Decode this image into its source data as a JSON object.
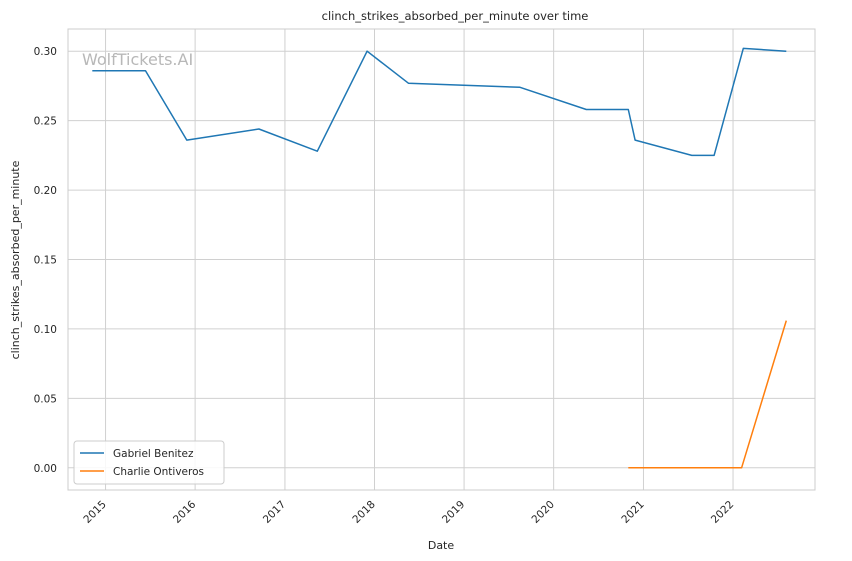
{
  "chart_data": {
    "type": "line",
    "title": "clinch_strikes_absorbed_per_minute over time",
    "xlabel": "Date",
    "ylabel": "clinch_strikes_absorbed_per_minute",
    "watermark": "WolfTickets.AI",
    "grid": true,
    "legend_position": "bottom-left",
    "xlim": [
      "2014-08-01",
      "2022-12-01"
    ],
    "ylim": [
      -0.016,
      0.316
    ],
    "x_ticks": [
      "2015-01-01",
      "2016-01-01",
      "2017-01-01",
      "2018-01-01",
      "2019-01-01",
      "2020-01-01",
      "2021-01-01",
      "2022-01-01"
    ],
    "x_tick_labels": [
      "2015",
      "2016",
      "2017",
      "2018",
      "2019",
      "2020",
      "2021",
      "2022"
    ],
    "y_ticks": [
      0.0,
      0.05,
      0.1,
      0.15,
      0.2,
      0.25,
      0.3
    ],
    "y_tick_labels": [
      "0.00",
      "0.05",
      "0.10",
      "0.15",
      "0.20",
      "0.25",
      "0.30"
    ],
    "series": [
      {
        "name": "Gabriel Benitez",
        "color": "#1f77b4",
        "points": [
          {
            "x": "2014-11-08",
            "y": 0.286
          },
          {
            "x": "2015-06-13",
            "y": 0.286
          },
          {
            "x": "2015-11-28",
            "y": 0.236
          },
          {
            "x": "2016-09-17",
            "y": 0.244
          },
          {
            "x": "2017-05-13",
            "y": 0.228
          },
          {
            "x": "2017-12-02",
            "y": 0.3
          },
          {
            "x": "2018-05-19",
            "y": 0.277
          },
          {
            "x": "2019-08-17",
            "y": 0.274
          },
          {
            "x": "2020-05-13",
            "y": 0.258
          },
          {
            "x": "2020-10-31",
            "y": 0.258
          },
          {
            "x": "2020-11-28",
            "y": 0.236
          },
          {
            "x": "2021-07-17",
            "y": 0.225
          },
          {
            "x": "2021-10-16",
            "y": 0.225
          },
          {
            "x": "2022-02-12",
            "y": 0.302
          },
          {
            "x": "2022-08-06",
            "y": 0.3
          }
        ]
      },
      {
        "name": "Charlie Ontiveros",
        "color": "#ff7f0e",
        "points": [
          {
            "x": "2020-10-31",
            "y": 0.0
          },
          {
            "x": "2022-02-05",
            "y": 0.0
          },
          {
            "x": "2022-08-06",
            "y": 0.106
          }
        ]
      }
    ]
  }
}
